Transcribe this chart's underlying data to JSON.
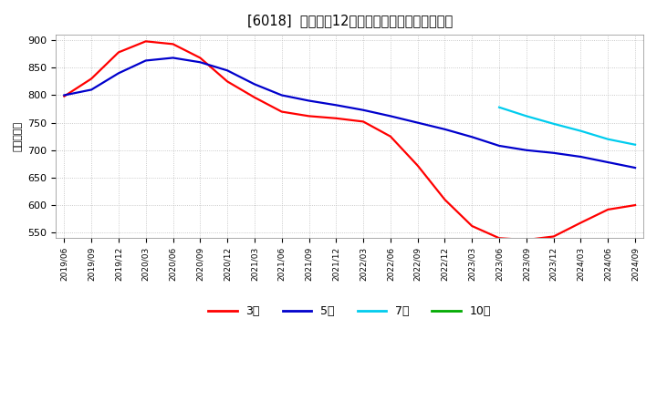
{
  "title": "[6018]  経常利益12か月移動合計の平均値の推移",
  "ylabel": "（百万円）",
  "background_color": "#ffffff",
  "plot_bg_color": "#ffffff",
  "grid_color": "#bbbbbb",
  "ylim": [
    540,
    910
  ],
  "yticks": [
    550,
    600,
    650,
    700,
    750,
    800,
    850,
    900
  ],
  "series": {
    "3year": {
      "color": "#ff0000",
      "label": "3年",
      "linewidth": 1.6
    },
    "5year": {
      "color": "#0000cc",
      "label": "5年",
      "linewidth": 1.6
    },
    "7year": {
      "color": "#00ccee",
      "label": "7年",
      "linewidth": 1.6
    },
    "10year": {
      "color": "#00aa00",
      "label": "10年",
      "linewidth": 1.6
    }
  },
  "x_labels": [
    "2019/06",
    "2019/09",
    "2019/12",
    "2020/03",
    "2020/06",
    "2020/09",
    "2020/12",
    "2021/03",
    "2021/06",
    "2021/09",
    "2021/12",
    "2022/03",
    "2022/06",
    "2022/09",
    "2022/12",
    "2023/03",
    "2023/06",
    "2023/09",
    "2023/12",
    "2024/03",
    "2024/06",
    "2024/09"
  ],
  "data_3year": [
    798,
    830,
    878,
    898,
    893,
    868,
    825,
    796,
    770,
    762,
    758,
    752,
    725,
    672,
    610,
    562,
    540,
    537,
    543,
    568,
    592,
    600
  ],
  "data_5year": [
    800,
    810,
    840,
    863,
    868,
    860,
    845,
    820,
    800,
    790,
    782,
    773,
    762,
    750,
    738,
    724,
    708,
    700,
    695,
    688,
    678,
    668
  ],
  "data_7year": [
    null,
    null,
    null,
    null,
    null,
    null,
    null,
    null,
    null,
    null,
    null,
    null,
    null,
    null,
    null,
    null,
    778,
    762,
    748,
    735,
    720,
    710
  ],
  "data_10year": [
    null,
    null,
    null,
    null,
    null,
    null,
    null,
    null,
    null,
    null,
    null,
    null,
    null,
    null,
    null,
    null,
    null,
    null,
    null,
    null,
    null,
    null
  ]
}
